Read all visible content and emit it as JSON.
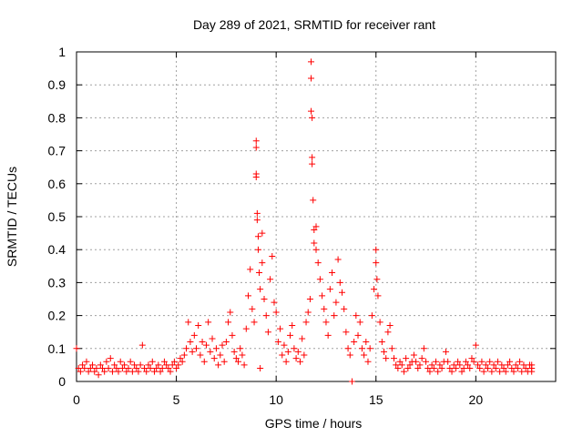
{
  "chart_data": {
    "type": "scatter",
    "title": "Day 289 of 2021, SRMTID for receiver rant",
    "xlabel": "GPS time / hours",
    "ylabel": "SRMTID / TECUs",
    "xlim": [
      0,
      24
    ],
    "ylim": [
      0,
      1
    ],
    "xticks": [
      0,
      5,
      10,
      15,
      20
    ],
    "xtick_labels": [
      "0",
      "5",
      "10",
      "15",
      "20"
    ],
    "yticks": [
      0,
      0.1,
      0.2,
      0.3,
      0.4,
      0.5,
      0.6,
      0.7,
      0.8,
      0.9,
      1
    ],
    "ytick_labels": [
      "0",
      "0.1",
      "0.2",
      "0.3",
      "0.4",
      "0.5",
      "0.6",
      "0.7",
      "0.8",
      "0.9",
      "1"
    ],
    "grid": true,
    "marker": "+",
    "series": [
      {
        "name": "SRMTID",
        "color": "#ff0000",
        "points": [
          [
            0.0,
            0.1
          ],
          [
            0.1,
            0.04
          ],
          [
            0.2,
            0.03
          ],
          [
            0.3,
            0.05
          ],
          [
            0.4,
            0.04
          ],
          [
            0.5,
            0.06
          ],
          [
            0.6,
            0.03
          ],
          [
            0.7,
            0.04
          ],
          [
            0.8,
            0.05
          ],
          [
            0.9,
            0.03
          ],
          [
            1.0,
            0.04
          ],
          [
            1.1,
            0.02
          ],
          [
            1.2,
            0.05
          ],
          [
            1.3,
            0.04
          ],
          [
            1.4,
            0.03
          ],
          [
            1.5,
            0.06
          ],
          [
            1.6,
            0.04
          ],
          [
            1.7,
            0.07
          ],
          [
            1.8,
            0.03
          ],
          [
            1.9,
            0.05
          ],
          [
            2.0,
            0.04
          ],
          [
            2.1,
            0.03
          ],
          [
            2.2,
            0.06
          ],
          [
            2.3,
            0.04
          ],
          [
            2.4,
            0.05
          ],
          [
            2.5,
            0.03
          ],
          [
            2.6,
            0.04
          ],
          [
            2.7,
            0.06
          ],
          [
            2.8,
            0.03
          ],
          [
            2.9,
            0.05
          ],
          [
            3.0,
            0.04
          ],
          [
            3.1,
            0.03
          ],
          [
            3.2,
            0.05
          ],
          [
            3.3,
            0.11
          ],
          [
            3.4,
            0.04
          ],
          [
            3.5,
            0.03
          ],
          [
            3.6,
            0.05
          ],
          [
            3.7,
            0.04
          ],
          [
            3.8,
            0.06
          ],
          [
            3.9,
            0.03
          ],
          [
            4.0,
            0.04
          ],
          [
            4.1,
            0.05
          ],
          [
            4.2,
            0.03
          ],
          [
            4.3,
            0.04
          ],
          [
            4.4,
            0.06
          ],
          [
            4.5,
            0.05
          ],
          [
            4.6,
            0.04
          ],
          [
            4.7,
            0.03
          ],
          [
            4.8,
            0.05
          ],
          [
            4.9,
            0.06
          ],
          [
            5.0,
            0.04
          ],
          [
            5.1,
            0.05
          ],
          [
            5.2,
            0.07
          ],
          [
            5.3,
            0.06
          ],
          [
            5.4,
            0.08
          ],
          [
            5.5,
            0.1
          ],
          [
            5.6,
            0.18
          ],
          [
            5.7,
            0.12
          ],
          [
            5.8,
            0.09
          ],
          [
            5.9,
            0.14
          ],
          [
            6.0,
            0.1
          ],
          [
            6.1,
            0.17
          ],
          [
            6.2,
            0.08
          ],
          [
            6.3,
            0.12
          ],
          [
            6.4,
            0.06
          ],
          [
            6.5,
            0.11
          ],
          [
            6.6,
            0.18
          ],
          [
            6.7,
            0.09
          ],
          [
            6.8,
            0.13
          ],
          [
            6.9,
            0.07
          ],
          [
            7.0,
            0.1
          ],
          [
            7.1,
            0.05
          ],
          [
            7.2,
            0.08
          ],
          [
            7.3,
            0.11
          ],
          [
            7.4,
            0.06
          ],
          [
            7.5,
            0.12
          ],
          [
            7.6,
            0.18
          ],
          [
            7.7,
            0.21
          ],
          [
            7.8,
            0.14
          ],
          [
            7.9,
            0.09
          ],
          [
            8.0,
            0.07
          ],
          [
            8.1,
            0.06
          ],
          [
            8.2,
            0.1
          ],
          [
            8.3,
            0.08
          ],
          [
            8.4,
            0.05
          ],
          [
            8.5,
            0.16
          ],
          [
            8.6,
            0.26
          ],
          [
            8.7,
            0.34
          ],
          [
            8.8,
            0.22
          ],
          [
            8.9,
            0.18
          ],
          [
            9.0,
            0.73
          ],
          [
            9.0,
            0.71
          ],
          [
            9.0,
            0.63
          ],
          [
            9.0,
            0.62
          ],
          [
            9.05,
            0.51
          ],
          [
            9.05,
            0.49
          ],
          [
            9.1,
            0.44
          ],
          [
            9.1,
            0.4
          ],
          [
            9.15,
            0.33
          ],
          [
            9.2,
            0.28
          ],
          [
            9.2,
            0.04
          ],
          [
            9.3,
            0.36
          ],
          [
            9.3,
            0.45
          ],
          [
            9.4,
            0.25
          ],
          [
            9.5,
            0.2
          ],
          [
            9.6,
            0.15
          ],
          [
            9.7,
            0.31
          ],
          [
            9.8,
            0.38
          ],
          [
            9.9,
            0.24
          ],
          [
            10.0,
            0.21
          ],
          [
            10.1,
            0.12
          ],
          [
            10.2,
            0.16
          ],
          [
            10.3,
            0.08
          ],
          [
            10.4,
            0.11
          ],
          [
            10.5,
            0.06
          ],
          [
            10.6,
            0.09
          ],
          [
            10.7,
            0.14
          ],
          [
            10.8,
            0.17
          ],
          [
            10.9,
            0.1
          ],
          [
            11.0,
            0.07
          ],
          [
            11.1,
            0.09
          ],
          [
            11.2,
            0.06
          ],
          [
            11.3,
            0.13
          ],
          [
            11.4,
            0.08
          ],
          [
            11.5,
            0.18
          ],
          [
            11.6,
            0.21
          ],
          [
            11.7,
            0.25
          ],
          [
            11.75,
            0.97
          ],
          [
            11.75,
            0.92
          ],
          [
            11.75,
            0.82
          ],
          [
            11.8,
            0.8
          ],
          [
            11.8,
            0.68
          ],
          [
            11.8,
            0.66
          ],
          [
            11.85,
            0.55
          ],
          [
            11.9,
            0.46
          ],
          [
            11.9,
            0.42
          ],
          [
            12.0,
            0.4
          ],
          [
            12.0,
            0.47
          ],
          [
            12.1,
            0.36
          ],
          [
            12.2,
            0.31
          ],
          [
            12.3,
            0.26
          ],
          [
            12.4,
            0.22
          ],
          [
            12.5,
            0.18
          ],
          [
            12.6,
            0.14
          ],
          [
            12.7,
            0.28
          ],
          [
            12.8,
            0.33
          ],
          [
            12.9,
            0.2
          ],
          [
            13.0,
            0.24
          ],
          [
            13.1,
            0.37
          ],
          [
            13.2,
            0.3
          ],
          [
            13.3,
            0.27
          ],
          [
            13.4,
            0.22
          ],
          [
            13.5,
            0.15
          ],
          [
            13.6,
            0.1
          ],
          [
            13.7,
            0.08
          ],
          [
            13.8,
            0.0
          ],
          [
            13.9,
            0.12
          ],
          [
            14.0,
            0.2
          ],
          [
            14.1,
            0.14
          ],
          [
            14.2,
            0.18
          ],
          [
            14.3,
            0.1
          ],
          [
            14.4,
            0.08
          ],
          [
            14.5,
            0.12
          ],
          [
            14.6,
            0.06
          ],
          [
            14.7,
            0.1
          ],
          [
            14.8,
            0.2
          ],
          [
            14.9,
            0.28
          ],
          [
            15.0,
            0.4
          ],
          [
            15.0,
            0.36
          ],
          [
            15.05,
            0.31
          ],
          [
            15.1,
            0.26
          ],
          [
            15.2,
            0.18
          ],
          [
            15.3,
            0.12
          ],
          [
            15.4,
            0.09
          ],
          [
            15.5,
            0.07
          ],
          [
            15.6,
            0.15
          ],
          [
            15.7,
            0.17
          ],
          [
            15.8,
            0.1
          ],
          [
            15.9,
            0.07
          ],
          [
            16.0,
            0.05
          ],
          [
            16.1,
            0.04
          ],
          [
            16.2,
            0.06
          ],
          [
            16.3,
            0.05
          ],
          [
            16.4,
            0.03
          ],
          [
            16.5,
            0.07
          ],
          [
            16.6,
            0.04
          ],
          [
            16.7,
            0.05
          ],
          [
            16.8,
            0.06
          ],
          [
            16.9,
            0.08
          ],
          [
            17.0,
            0.06
          ],
          [
            17.1,
            0.04
          ],
          [
            17.2,
            0.05
          ],
          [
            17.3,
            0.07
          ],
          [
            17.4,
            0.1
          ],
          [
            17.5,
            0.06
          ],
          [
            17.6,
            0.04
          ],
          [
            17.7,
            0.03
          ],
          [
            17.8,
            0.05
          ],
          [
            17.9,
            0.04
          ],
          [
            18.0,
            0.06
          ],
          [
            18.1,
            0.03
          ],
          [
            18.2,
            0.05
          ],
          [
            18.3,
            0.04
          ],
          [
            18.4,
            0.06
          ],
          [
            18.5,
            0.09
          ],
          [
            18.6,
            0.06
          ],
          [
            18.7,
            0.04
          ],
          [
            18.8,
            0.03
          ],
          [
            18.9,
            0.05
          ],
          [
            19.0,
            0.04
          ],
          [
            19.1,
            0.06
          ],
          [
            19.2,
            0.05
          ],
          [
            19.3,
            0.03
          ],
          [
            19.4,
            0.04
          ],
          [
            19.5,
            0.06
          ],
          [
            19.6,
            0.05
          ],
          [
            19.7,
            0.04
          ],
          [
            19.8,
            0.07
          ],
          [
            19.9,
            0.06
          ],
          [
            20.0,
            0.11
          ],
          [
            20.1,
            0.05
          ],
          [
            20.2,
            0.04
          ],
          [
            20.3,
            0.06
          ],
          [
            20.4,
            0.03
          ],
          [
            20.5,
            0.05
          ],
          [
            20.6,
            0.04
          ],
          [
            20.7,
            0.06
          ],
          [
            20.8,
            0.03
          ],
          [
            20.9,
            0.05
          ],
          [
            21.0,
            0.04
          ],
          [
            21.1,
            0.06
          ],
          [
            21.2,
            0.03
          ],
          [
            21.3,
            0.05
          ],
          [
            21.4,
            0.04
          ],
          [
            21.5,
            0.03
          ],
          [
            21.6,
            0.05
          ],
          [
            21.7,
            0.06
          ],
          [
            21.8,
            0.04
          ],
          [
            21.9,
            0.03
          ],
          [
            22.0,
            0.05
          ],
          [
            22.1,
            0.04
          ],
          [
            22.2,
            0.06
          ],
          [
            22.3,
            0.03
          ],
          [
            22.4,
            0.05
          ],
          [
            22.5,
            0.04
          ],
          [
            22.6,
            0.03
          ],
          [
            22.7,
            0.05
          ],
          [
            22.8,
            0.04
          ],
          [
            22.8,
            0.03
          ],
          [
            22.8,
            0.05
          ]
        ]
      }
    ]
  }
}
